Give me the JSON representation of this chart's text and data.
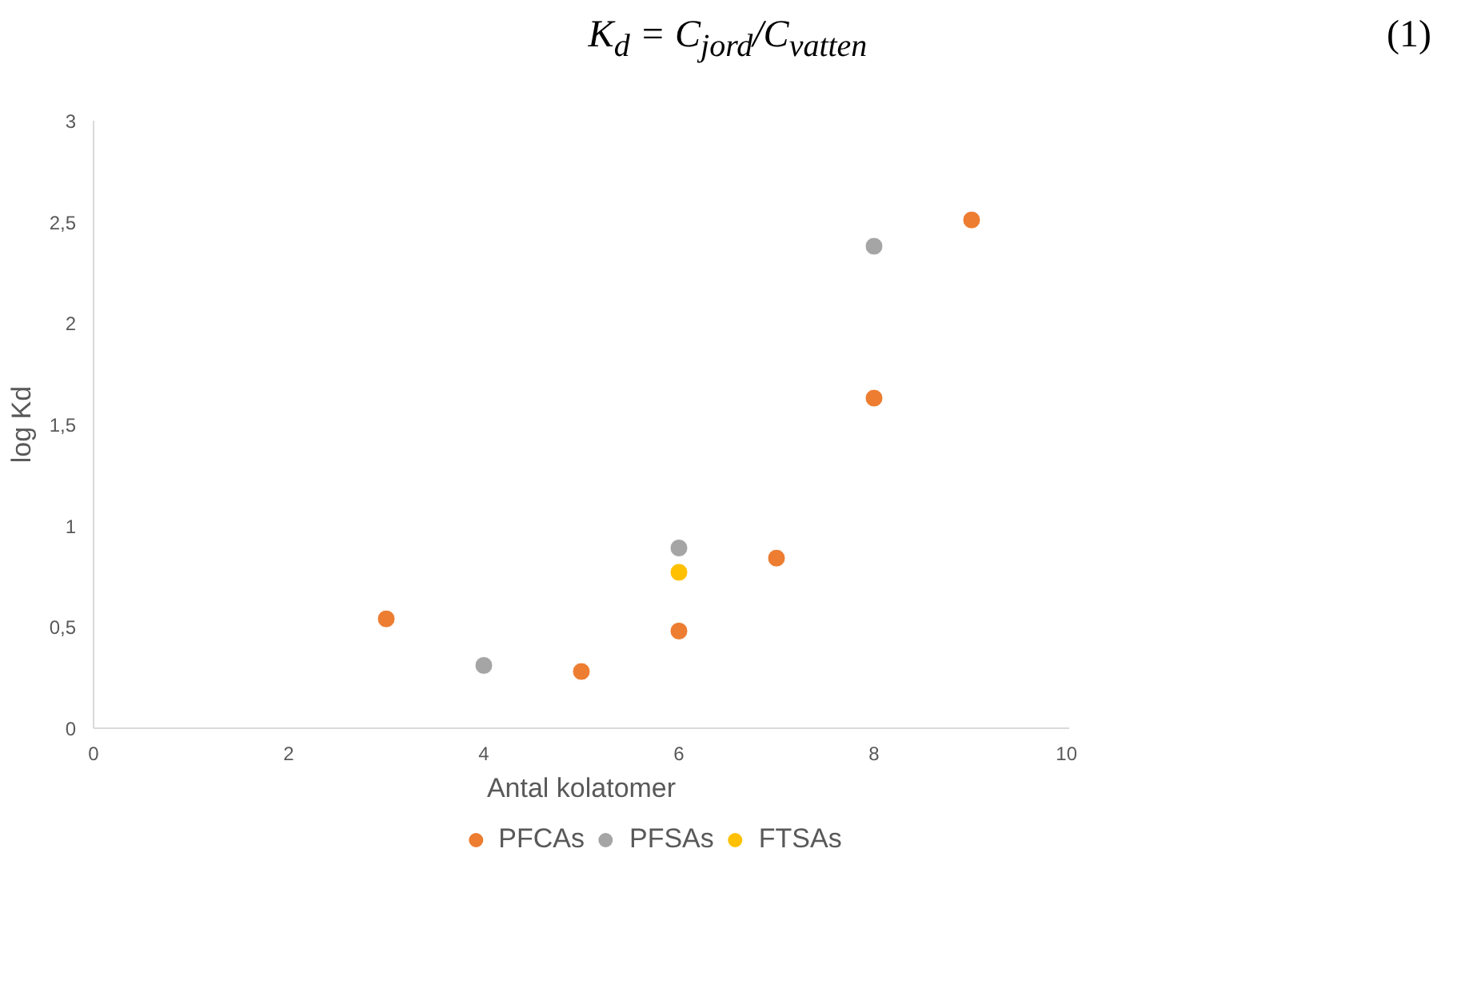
{
  "chart_data": {
    "type": "scatter",
    "xlabel": "Antal kolatomer",
    "ylabel": "log Kd",
    "annotations": [
      "K$_{d}$ = C$_{jord}$/C$_{vatten}$",
      "(1)"
    ],
    "series": [
      {
        "name": "PFCAs",
        "color": "#ed7d31",
        "x": [
          3,
          5,
          6,
          7,
          8,
          9
        ],
        "values": [
          0.54,
          0.28,
          0.48,
          0.84,
          1.63,
          2.51
        ]
      },
      {
        "name": "PFSAs",
        "color": "#a5a5a5",
        "x": [
          4,
          6,
          8
        ],
        "values": [
          0.31,
          0.89,
          2.38
        ]
      },
      {
        "name": "FTSAs",
        "color": "#ffc000",
        "x": [
          6
        ],
        "values": [
          0.77
        ]
      }
    ],
    "xlim": [
      0,
      10
    ],
    "xticks": [
      0,
      2,
      4,
      6,
      8,
      10
    ],
    "ylim": [
      0,
      3
    ],
    "yticks": [
      0,
      {
        "value": 0.5,
        "label": "0,5"
      },
      1,
      {
        "value": 1.5,
        "label": "1,5"
      },
      2,
      {
        "value": 2.5,
        "label": "2,5"
      },
      3
    ],
    "grid": false,
    "legend": "bottom",
    "marker": "circle"
  }
}
